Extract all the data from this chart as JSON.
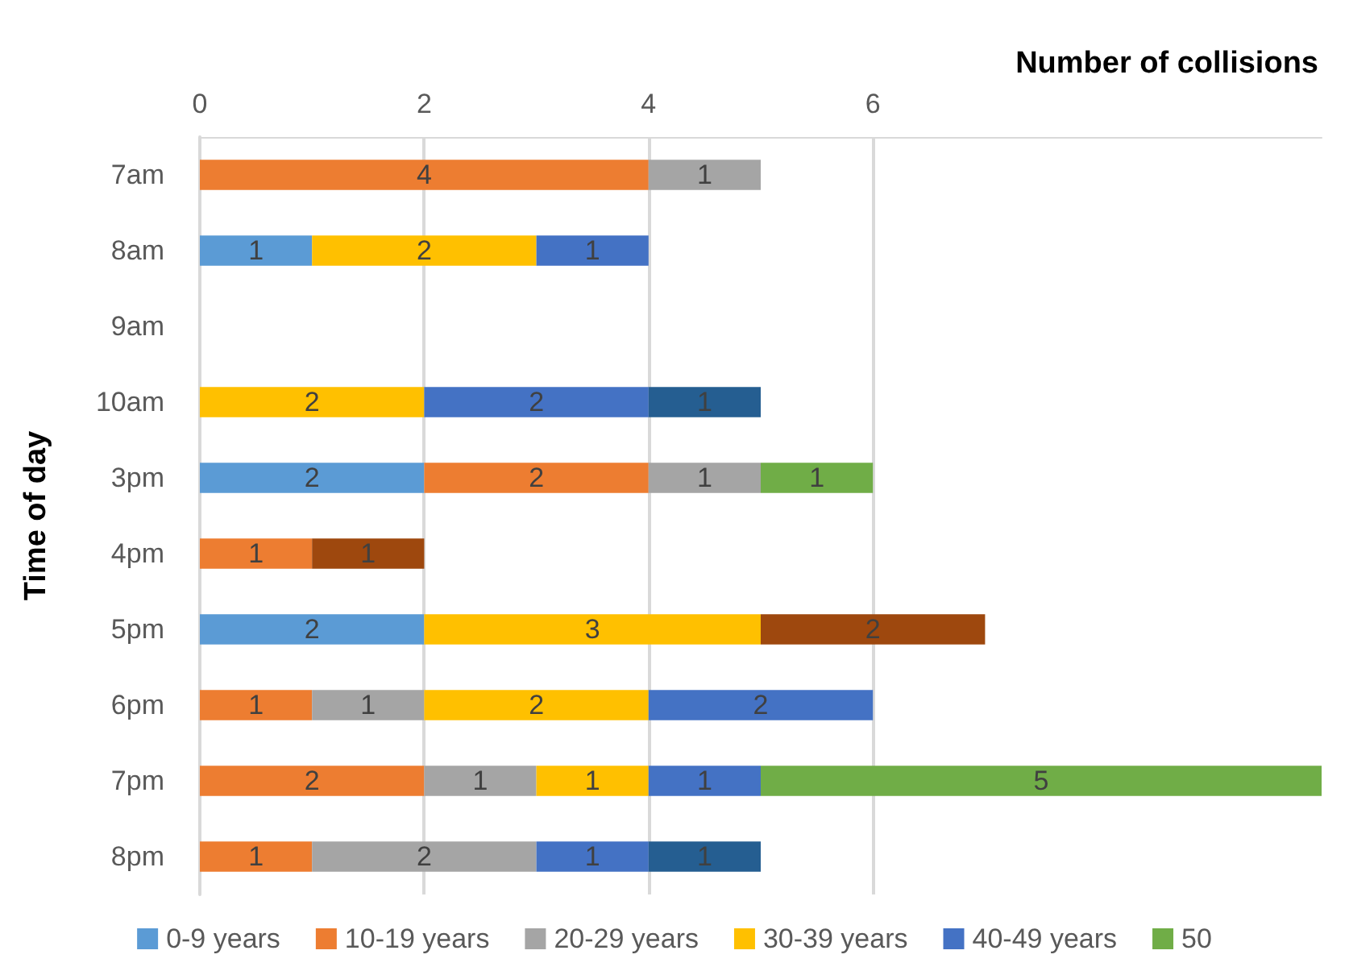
{
  "chart_data": {
    "type": "bar",
    "orientation": "horizontal",
    "stacked": true,
    "xlabel": "Number of collisions",
    "ylabel": "Time of day",
    "categories": [
      "7am",
      "8am",
      "9am",
      "10am",
      "3pm",
      "4pm",
      "5pm",
      "6pm",
      "7pm",
      "8pm"
    ],
    "series": [
      {
        "name": "0-9 years",
        "color": "#5b9bd5",
        "values": [
          null,
          1,
          null,
          null,
          2,
          null,
          2,
          null,
          null,
          null
        ]
      },
      {
        "name": "10-19 years",
        "color": "#ed7d31",
        "values": [
          4,
          null,
          null,
          null,
          2,
          1,
          null,
          1,
          2,
          1
        ]
      },
      {
        "name": "20-29 years",
        "color": "#a5a5a5",
        "values": [
          1,
          null,
          null,
          null,
          1,
          null,
          null,
          1,
          1,
          2
        ]
      },
      {
        "name": "30-39 years",
        "color": "#ffc000",
        "values": [
          null,
          2,
          null,
          2,
          null,
          null,
          3,
          2,
          1,
          null
        ]
      },
      {
        "name": "40-49 years",
        "color": "#4472c4",
        "values": [
          null,
          1,
          null,
          2,
          null,
          null,
          null,
          2,
          1,
          1
        ]
      },
      {
        "name": "50",
        "color": "#70ad47",
        "values": [
          null,
          null,
          null,
          null,
          1,
          null,
          null,
          null,
          5,
          null
        ]
      },
      {
        "color": "#255e91",
        "values": [
          null,
          null,
          null,
          1,
          null,
          null,
          null,
          null,
          null,
          1
        ]
      },
      {
        "color": "#9e480e",
        "values": [
          null,
          null,
          null,
          null,
          null,
          1,
          2,
          null,
          null,
          null
        ]
      }
    ],
    "xlim": [
      0,
      10
    ],
    "xticks": [
      0,
      2,
      4,
      6
    ],
    "grid": "x",
    "legend": "bottom",
    "data_labels": true
  }
}
